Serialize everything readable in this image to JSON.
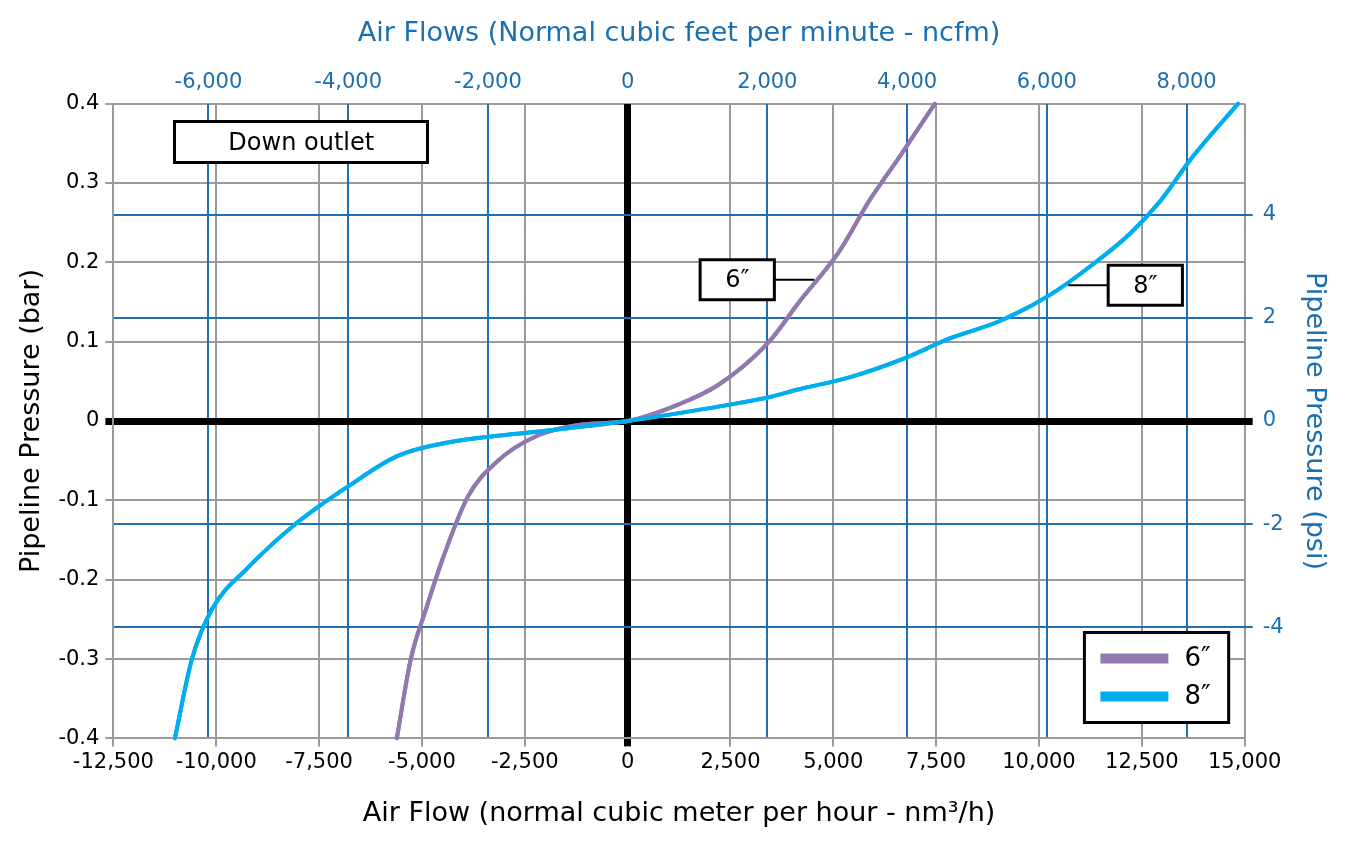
{
  "chart_data": {
    "type": "line",
    "xlabel": "Air Flow (normal cubic meter per hour - nm³/h)",
    "x2label": "Air Flows (Normal cubic feet per minute - ncfm)",
    "ylabel": "Pipeline Pressure (bar)",
    "y2label": "Pipeline Pressure (psi)",
    "xlim": [
      -12500,
      15000
    ],
    "xticks": [
      {
        "value": -12500,
        "label": "-12,500"
      },
      {
        "value": -10000,
        "label": "-10,000"
      },
      {
        "value": -7500,
        "label": "-7,500"
      },
      {
        "value": -5000,
        "label": "-5,000"
      },
      {
        "value": -2500,
        "label": "-2,500"
      },
      0,
      {
        "value": 2500,
        "label": "2,500"
      },
      {
        "value": 5000,
        "label": "5,000"
      },
      {
        "value": 7500,
        "label": "7,500"
      },
      {
        "value": 10000,
        "label": "10,000"
      },
      {
        "value": 12500,
        "label": "12,500"
      },
      {
        "value": 15000,
        "label": "15,000"
      }
    ],
    "x2lim": [
      -7360,
      8830
    ],
    "x2ticks": [
      {
        "value": -6000,
        "label": "-6,000"
      },
      {
        "value": -4000,
        "label": "-4,000"
      },
      {
        "value": -2000,
        "label": "-2,000"
      },
      0,
      {
        "value": 2000,
        "label": "2,000"
      },
      {
        "value": 4000,
        "label": "4,000"
      },
      {
        "value": 6000,
        "label": "6,000"
      },
      {
        "value": 8000,
        "label": "8,000"
      }
    ],
    "ylim": [
      -0.4,
      0.4
    ],
    "yticks": [
      -0.4,
      -0.3,
      -0.2,
      -0.1,
      0,
      0.1,
      0.2,
      0.3,
      0.4
    ],
    "y2lim": [
      -6.15,
      6.15
    ],
    "y2ticks": [
      -4,
      -2,
      0,
      2,
      4
    ],
    "grid": true,
    "legend": "bottom right",
    "marker": "none",
    "line_style": "solid",
    "annotations": [
      "Down outlet",
      {
        "text": "6″",
        "x": 4540,
        "y": 0.178
      },
      {
        "text": "8″",
        "x": 10710,
        "y": 0.171
      }
    ],
    "series": [
      {
        "name": "6″",
        "color": "#9278b0",
        "x": [
          -5610,
          -5270,
          -4900,
          -4490,
          -3880,
          -3150,
          -2170,
          -1200,
          0,
          1245,
          2220,
          3440,
          4170,
          5150,
          5880,
          6610,
          7470
        ],
        "values": [
          -0.4,
          -0.3,
          -0.237,
          -0.173,
          -0.095,
          -0.05,
          -0.018,
          -0.005,
          0,
          0.021,
          0.046,
          0.1,
          0.15,
          0.214,
          0.278,
          0.333,
          0.4
        ]
      },
      {
        "name": "8″",
        "color": "#00aeef",
        "x": [
          -11005,
          -10590,
          -10100,
          -9250,
          -8030,
          -6810,
          -5590,
          -4370,
          -1930,
          0,
          1730,
          3440,
          4170,
          5390,
          6730,
          7830,
          9050,
          10270,
          11250,
          12230,
          12960,
          13690,
          14840
        ],
        "values": [
          -0.4,
          -0.3,
          -0.237,
          -0.186,
          -0.128,
          -0.083,
          -0.044,
          -0.027,
          -0.012,
          0,
          0.014,
          0.03,
          0.04,
          0.055,
          0.079,
          0.104,
          0.126,
          0.159,
          0.195,
          0.237,
          0.278,
          0.33,
          0.4
        ]
      }
    ]
  }
}
